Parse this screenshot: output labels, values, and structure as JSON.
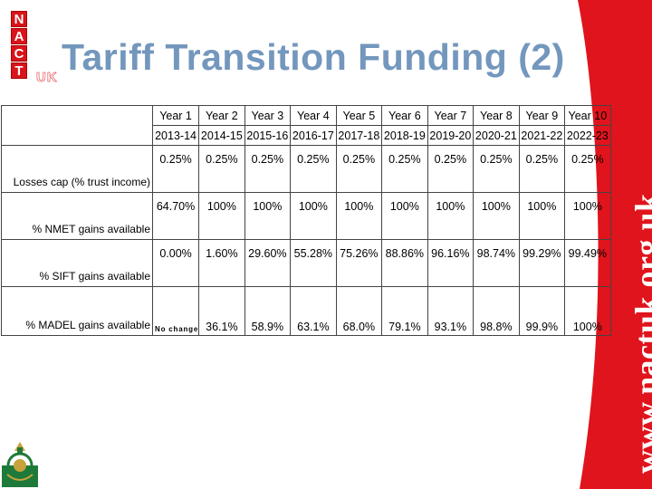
{
  "logo": {
    "letters": [
      "N",
      "A",
      "C",
      "T"
    ],
    "suffix": "UK"
  },
  "title": "Tariff Transition Funding (2)",
  "website": "www.nactuk.org.uk",
  "brand_color": "#d9141b",
  "title_color": "#7397bd",
  "table": {
    "years": [
      "Year 1",
      "Year 2",
      "Year 3",
      "Year 4",
      "Year 5",
      "Year 6",
      "Year 7",
      "Year 8",
      "Year 9",
      "Year 10"
    ],
    "periods": [
      "2013-14",
      "2014-15",
      "2015-16",
      "2016-17",
      "2017-18",
      "2018-19",
      "2019-20",
      "2020-21",
      "2021-22",
      "2022-23"
    ],
    "rows": [
      {
        "label": "Losses cap (% trust income)",
        "values": [
          "0.25%",
          "0.25%",
          "0.25%",
          "0.25%",
          "0.25%",
          "0.25%",
          "0.25%",
          "0.25%",
          "0.25%",
          "0.25%"
        ]
      },
      {
        "label": "% NMET gains available",
        "values": [
          "64.70%",
          "100%",
          "100%",
          "100%",
          "100%",
          "100%",
          "100%",
          "100%",
          "100%",
          "100%"
        ]
      },
      {
        "label": "% SIFT gains available",
        "values": [
          "0.00%",
          "1.60%",
          "29.60%",
          "55.28%",
          "75.26%",
          "88.86%",
          "96.16%",
          "98.74%",
          "99.29%",
          "99.49%"
        ]
      },
      {
        "label": "% MADEL gains available",
        "values": [
          "No change",
          "36.1%",
          "58.9%",
          "63.1%",
          "68.0%",
          "79.1%",
          "93.1%",
          "98.8%",
          "99.9%",
          "100%"
        ]
      }
    ]
  }
}
